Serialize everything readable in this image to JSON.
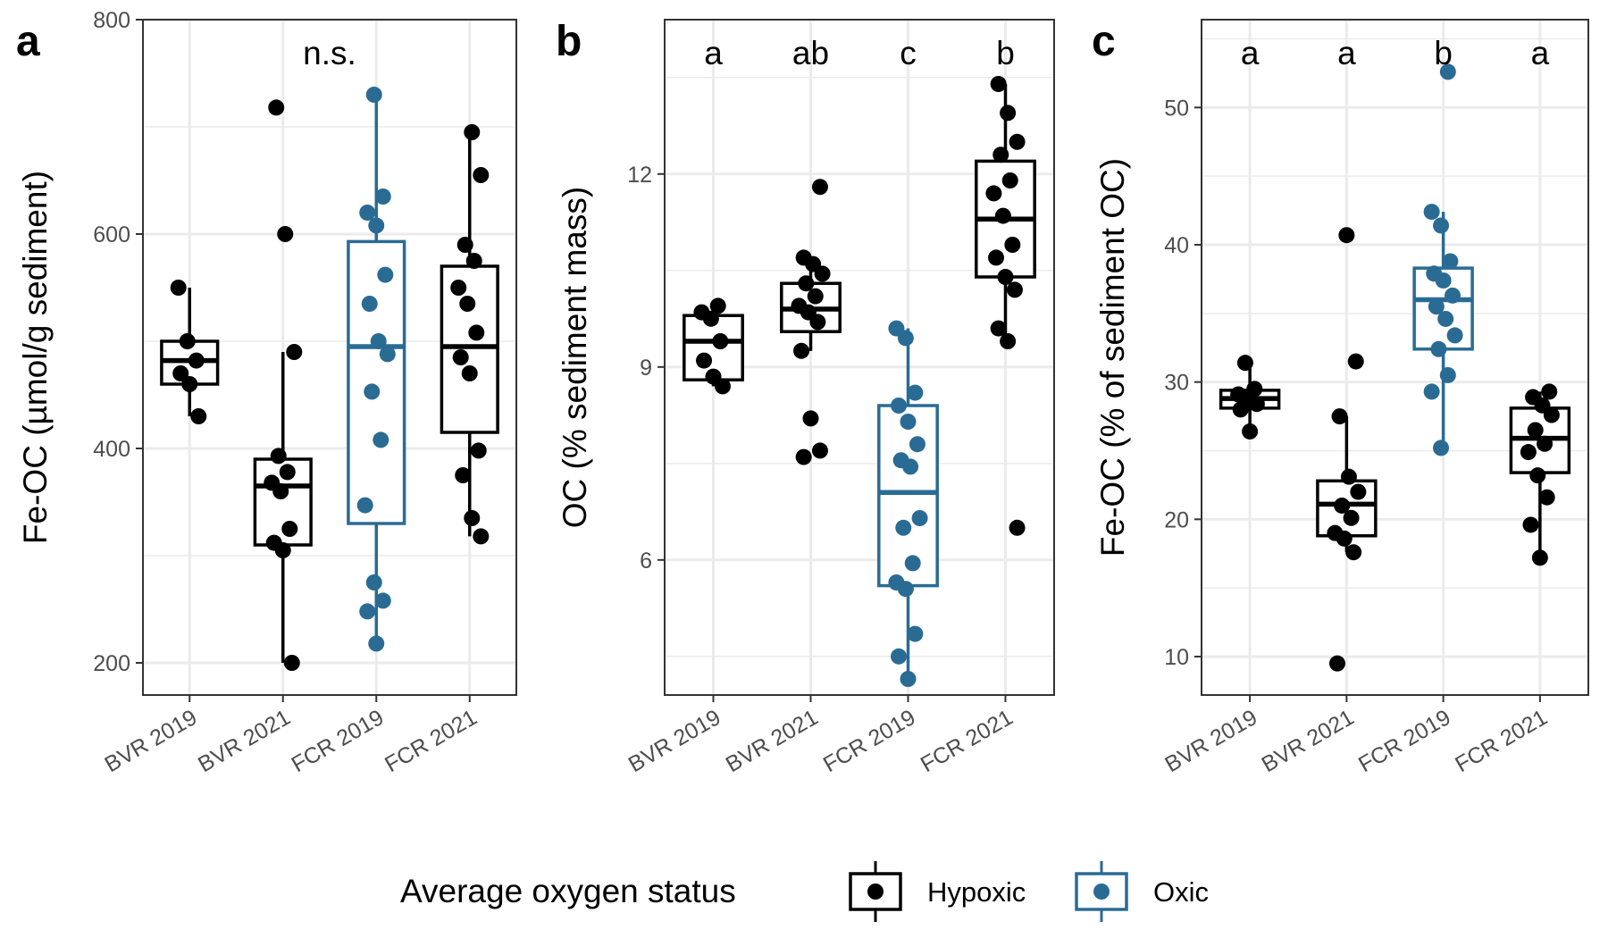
{
  "colors": {
    "Hypoxic": "#000000",
    "Oxic": "#2a6b94",
    "grid": "#ebebeb",
    "panel_border": "#333333"
  },
  "legend": {
    "title": "Average oxygen status",
    "placement": "bottom",
    "items": [
      {
        "label": "Hypoxic",
        "color": "#000000"
      },
      {
        "label": "Oxic",
        "color": "#2a6b94"
      }
    ]
  },
  "chart_data": [
    {
      "type": "box",
      "tag": "a",
      "ylabel": "Fe-OC (µmol/g sediment)",
      "ylim": [
        170,
        800
      ],
      "yticks": [
        200,
        400,
        600,
        800
      ],
      "grid": true,
      "categories": [
        "BVR 2019",
        "BVR 2021",
        "FCR 2019",
        "FCR 2021"
      ],
      "annotation": "n.s.",
      "groups": [
        {
          "category": "BVR 2019",
          "status": "Hypoxic",
          "box": {
            "lower_whisker": 430,
            "q1": 460,
            "median": 482,
            "q3": 500,
            "upper_whisker": 550
          },
          "points": [
            550,
            500,
            482,
            470,
            460,
            430
          ]
        },
        {
          "category": "BVR 2021",
          "status": "Hypoxic",
          "box": {
            "lower_whisker": 200,
            "q1": 310,
            "median": 365,
            "q3": 390,
            "upper_whisker": 490
          },
          "points": [
            718,
            600,
            490,
            393,
            378,
            368,
            360,
            325,
            312,
            305,
            200
          ]
        },
        {
          "category": "FCR 2019",
          "status": "Oxic",
          "box": {
            "lower_whisker": 218,
            "q1": 330,
            "median": 495,
            "q3": 593,
            "upper_whisker": 730
          },
          "points": [
            730,
            635,
            620,
            608,
            562,
            535,
            500,
            488,
            453,
            408,
            347,
            275,
            258,
            248,
            218
          ]
        },
        {
          "category": "FCR 2021",
          "status": "Hypoxic",
          "box": {
            "lower_whisker": 318,
            "q1": 415,
            "median": 495,
            "q3": 570,
            "upper_whisker": 695
          },
          "points": [
            695,
            655,
            590,
            575,
            550,
            535,
            508,
            485,
            470,
            398,
            375,
            335,
            318
          ]
        }
      ]
    },
    {
      "type": "box",
      "tag": "b",
      "ylabel": "OC (% sediment mass)",
      "ylim": [
        3.9,
        14.4
      ],
      "yticks": [
        6,
        9,
        12
      ],
      "grid": true,
      "categories": [
        "BVR 2019",
        "BVR 2021",
        "FCR 2019",
        "FCR 2021"
      ],
      "groups": [
        {
          "category": "BVR 2019",
          "status": "Hypoxic",
          "letter": "a",
          "box": {
            "lower_whisker": 8.7,
            "q1": 8.8,
            "median": 9.4,
            "q3": 9.8,
            "upper_whisker": 9.95
          },
          "points": [
            9.95,
            9.85,
            9.75,
            9.4,
            9.1,
            8.85,
            8.7
          ]
        },
        {
          "category": "BVR 2021",
          "status": "Hypoxic",
          "letter": "ab",
          "box": {
            "lower_whisker": 9.25,
            "q1": 9.55,
            "median": 9.9,
            "q3": 10.3,
            "upper_whisker": 10.7
          },
          "points": [
            11.8,
            10.7,
            10.6,
            10.45,
            10.3,
            10.1,
            9.95,
            9.85,
            9.7,
            9.25,
            8.2,
            7.7,
            7.6
          ]
        },
        {
          "category": "FCR 2019",
          "status": "Oxic",
          "letter": "c",
          "box": {
            "lower_whisker": 4.15,
            "q1": 5.6,
            "median": 7.05,
            "q3": 8.4,
            "upper_whisker": 9.6
          },
          "points": [
            9.6,
            9.45,
            8.6,
            8.4,
            8.15,
            7.8,
            7.55,
            7.45,
            6.65,
            6.5,
            5.95,
            5.65,
            5.55,
            4.85,
            4.5,
            4.15
          ]
        },
        {
          "category": "FCR 2021",
          "status": "Hypoxic",
          "letter": "b",
          "box": {
            "lower_whisker": 9.4,
            "q1": 10.4,
            "median": 11.3,
            "q3": 12.2,
            "upper_whisker": 13.4
          },
          "points": [
            13.4,
            12.95,
            12.5,
            12.3,
            11.9,
            11.7,
            11.35,
            10.9,
            10.7,
            10.4,
            10.2,
            9.6,
            9.4,
            6.5
          ]
        }
      ]
    },
    {
      "type": "box",
      "tag": "c",
      "ylabel": "Fe-OC (% of sediment OC)",
      "ylim": [
        7.2,
        56.4
      ],
      "yticks": [
        10,
        20,
        30,
        40,
        50
      ],
      "grid": true,
      "categories": [
        "BVR 2019",
        "BVR 2021",
        "FCR 2019",
        "FCR 2021"
      ],
      "groups": [
        {
          "category": "BVR 2019",
          "status": "Hypoxic",
          "letter": "a",
          "box": {
            "lower_whisker": 26.4,
            "q1": 28.1,
            "median": 28.8,
            "q3": 29.4,
            "upper_whisker": 31.4
          },
          "points": [
            31.4,
            29.5,
            29.1,
            28.7,
            28.4,
            28.0,
            26.4
          ]
        },
        {
          "category": "BVR 2021",
          "status": "Hypoxic",
          "letter": "a",
          "box": {
            "lower_whisker": 17.6,
            "q1": 18.8,
            "median": 21.1,
            "q3": 22.8,
            "upper_whisker": 27.5
          },
          "points": [
            40.7,
            31.5,
            27.5,
            23.1,
            22.0,
            21.0,
            20.1,
            19.0,
            18.6,
            17.6,
            9.5
          ]
        },
        {
          "category": "FCR 2019",
          "status": "Oxic",
          "letter": "b",
          "box": {
            "lower_whisker": 25.2,
            "q1": 32.4,
            "median": 36.0,
            "q3": 38.3,
            "upper_whisker": 42.4
          },
          "points": [
            52.6,
            42.4,
            41.4,
            38.8,
            37.9,
            37.4,
            36.3,
            35.5,
            34.6,
            33.4,
            32.4,
            30.5,
            29.3,
            25.2
          ]
        },
        {
          "category": "FCR 2021",
          "status": "Hypoxic",
          "letter": "a",
          "box": {
            "lower_whisker": 17.2,
            "q1": 23.4,
            "median": 25.9,
            "q3": 28.1,
            "upper_whisker": 29.3
          },
          "points": [
            29.3,
            28.9,
            28.3,
            27.6,
            26.5,
            25.5,
            24.9,
            23.2,
            21.6,
            19.6,
            17.2
          ]
        }
      ]
    }
  ]
}
